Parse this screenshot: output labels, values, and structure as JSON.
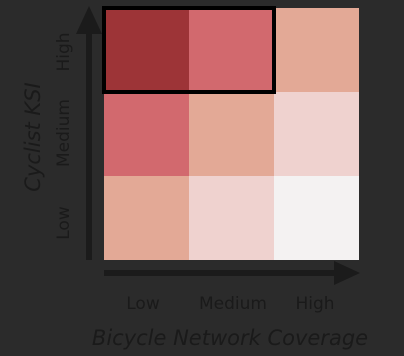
{
  "chart_data": {
    "type": "heatmap",
    "title": "",
    "xlabel": "Bicycle Network Coverage",
    "ylabel": "Cyclist KSI",
    "x_categories": [
      "Low",
      "Medium",
      "High"
    ],
    "y_categories": [
      "Low",
      "Medium",
      "High"
    ],
    "colors": [
      [
        "#e3a996",
        "#efd2cf",
        "#f4f2f2"
      ],
      [
        "#d2696e",
        "#e3a996",
        "#efd2cf"
      ],
      [
        "#9d3437",
        "#d2696e",
        "#e3a996"
      ]
    ],
    "highlight": {
      "rows": [
        "High"
      ],
      "columns": [
        "Low",
        "Medium"
      ],
      "color": "#000000"
    },
    "grid": false,
    "legend": "none"
  }
}
